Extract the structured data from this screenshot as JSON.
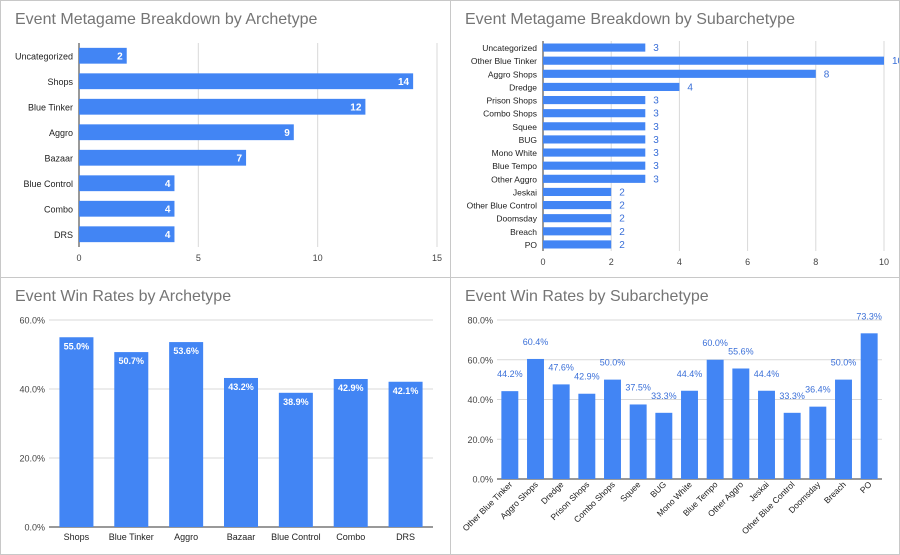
{
  "chart_data": [
    {
      "type": "bar",
      "orientation": "horizontal",
      "title": "Event Metagame Breakdown by Archetype",
      "categories": [
        "Uncategorized",
        "Shops",
        "Blue Tinker",
        "Aggro",
        "Bazaar",
        "Blue Control",
        "Combo",
        "DRS"
      ],
      "values": [
        2,
        14,
        12,
        9,
        7,
        4,
        4,
        4
      ],
      "xlim": [
        0,
        15
      ],
      "xticks": [
        0,
        5,
        10,
        15
      ],
      "grid": true,
      "label_position": "inside-end",
      "bar_color": "#4285f4"
    },
    {
      "type": "bar",
      "orientation": "horizontal",
      "title": "Event Metagame Breakdown by Subarchetype",
      "categories": [
        "Uncategorized",
        "Other Blue Tinker",
        "Aggro Shops",
        "Dredge",
        "Prison Shops",
        "Combo Shops",
        "Squee",
        "BUG",
        "Mono White",
        "Blue Tempo",
        "Other Aggro",
        "Jeskai",
        "Other Blue Control",
        "Doomsday",
        "Breach",
        "PO"
      ],
      "values": [
        3,
        10,
        8,
        4,
        3,
        3,
        3,
        3,
        3,
        3,
        3,
        2,
        2,
        2,
        2,
        2
      ],
      "xlim": [
        0,
        10
      ],
      "xticks": [
        0,
        2,
        4,
        6,
        8,
        10
      ],
      "grid": true,
      "label_position": "outside-end",
      "bar_color": "#4285f4"
    },
    {
      "type": "bar",
      "orientation": "vertical",
      "title": "Event Win Rates by Archetype",
      "categories": [
        "Shops",
        "Blue Tinker",
        "Aggro",
        "Bazaar",
        "Blue Control",
        "Combo",
        "DRS"
      ],
      "values": [
        55.0,
        50.7,
        53.6,
        43.2,
        38.9,
        42.9,
        42.1
      ],
      "ylim": [
        0,
        60
      ],
      "yticks": [
        0,
        20,
        40,
        60
      ],
      "grid": true,
      "label_position": "inside-end",
      "bar_color": "#4285f4"
    },
    {
      "type": "bar",
      "orientation": "vertical",
      "title": "Event Win Rates by Subarchetype",
      "categories": [
        "Other Blue Tinker",
        "Aggro Shops",
        "Dredge",
        "Prison Shops",
        "Combo Shops",
        "Squee",
        "BUG",
        "Mono White",
        "Blue Tempo",
        "Other Aggro",
        "Jeskai",
        "Other Blue Control",
        "Doomsday",
        "Breach",
        "PO"
      ],
      "values": [
        44.2,
        60.4,
        47.6,
        42.9,
        50.0,
        37.5,
        33.3,
        44.4,
        60.0,
        55.6,
        44.4,
        33.3,
        36.4,
        50.0,
        73.3
      ],
      "ylim": [
        0,
        80
      ],
      "yticks": [
        0,
        20,
        40,
        60,
        80
      ],
      "grid": true,
      "label_position": "outside-end",
      "bar_color": "#4285f4"
    }
  ]
}
